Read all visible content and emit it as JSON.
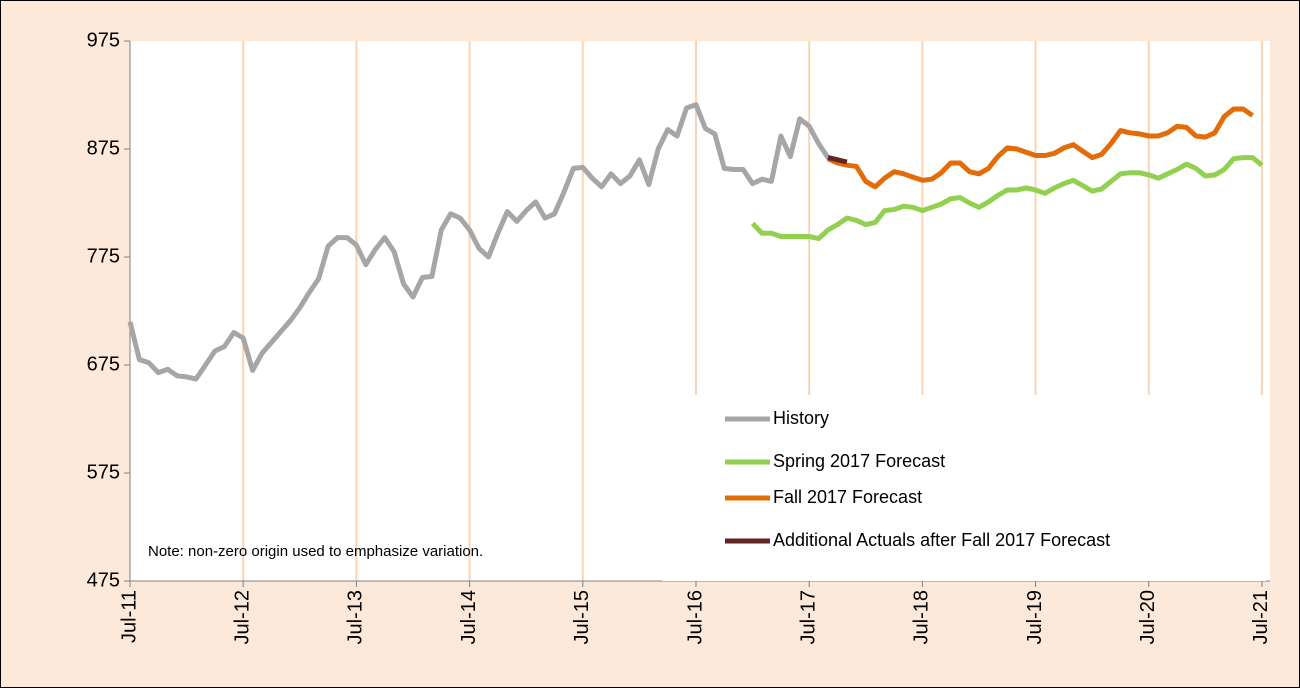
{
  "chart_data": {
    "type": "line",
    "annotation": "Note: non-zero origin used to emphasize variation.",
    "categories": [
      "Jul-11",
      null,
      null,
      null,
      null,
      null,
      null,
      null,
      null,
      null,
      null,
      null,
      "Jul-12",
      null,
      null,
      null,
      null,
      null,
      null,
      null,
      null,
      null,
      null,
      null,
      "Jul-13",
      null,
      null,
      null,
      null,
      null,
      null,
      null,
      null,
      null,
      null,
      null,
      "Jul-14",
      null,
      null,
      null,
      null,
      null,
      null,
      null,
      null,
      null,
      null,
      null,
      "Jul-15",
      null,
      null,
      null,
      null,
      null,
      null,
      null,
      null,
      null,
      null,
      null,
      "Jul-16",
      null,
      null,
      null,
      null,
      null,
      null,
      null,
      null,
      null,
      null,
      null,
      "Jul-17",
      null,
      null,
      null,
      null,
      null,
      null,
      null,
      null,
      null,
      null,
      null,
      "Jul-18",
      null,
      null,
      null,
      null,
      null,
      null,
      null,
      null,
      null,
      null,
      null,
      "Jul-19",
      null,
      null,
      null,
      null,
      null,
      null,
      null,
      null,
      null,
      null,
      null,
      "Jul-20",
      null,
      null,
      null,
      null,
      null,
      null,
      null,
      null,
      null,
      null,
      null,
      "Jul-21"
    ],
    "ylim": [
      475,
      975
    ],
    "yticks": [
      475,
      575,
      675,
      775,
      875,
      975
    ],
    "grid": "x",
    "legend": "lower right",
    "series": [
      {
        "name": "History",
        "color": "#a6a6a6",
        "values": [
          715,
          680,
          677,
          668,
          671,
          665,
          664,
          662,
          675,
          688,
          692,
          705,
          700,
          670,
          686,
          696,
          706,
          716,
          728,
          742,
          755,
          785,
          793,
          793,
          786,
          768,
          782,
          793,
          780,
          750,
          738,
          756,
          757,
          800,
          815,
          811,
          800,
          783,
          775,
          797,
          817,
          808,
          818,
          826,
          811,
          815,
          835,
          857,
          858,
          848,
          840,
          852,
          843,
          850,
          865,
          842,
          875,
          893,
          887,
          913,
          916,
          894,
          889,
          857,
          856,
          856,
          843,
          847,
          845,
          887,
          868,
          903,
          896,
          880,
          867,
          865,
          null,
          null,
          null,
          null,
          null,
          null,
          null,
          null,
          null,
          null,
          null,
          null,
          null,
          null,
          null,
          null,
          null,
          null,
          null,
          null,
          null,
          null,
          null,
          null,
          null,
          null,
          null,
          null,
          null,
          null,
          null,
          null,
          null,
          null,
          null,
          null,
          null,
          null,
          null,
          null,
          null,
          null,
          null,
          null,
          null
        ]
      },
      {
        "name": "Spring 2017 Forecast",
        "color": "#92d050",
        "values": [
          null,
          null,
          null,
          null,
          null,
          null,
          null,
          null,
          null,
          null,
          null,
          null,
          null,
          null,
          null,
          null,
          null,
          null,
          null,
          null,
          null,
          null,
          null,
          null,
          null,
          null,
          null,
          null,
          null,
          null,
          null,
          null,
          null,
          null,
          null,
          null,
          null,
          null,
          null,
          null,
          null,
          null,
          null,
          null,
          null,
          null,
          null,
          null,
          null,
          null,
          null,
          null,
          null,
          null,
          null,
          null,
          null,
          null,
          null,
          null,
          null,
          null,
          null,
          null,
          null,
          null,
          806,
          797,
          797,
          794,
          794,
          794,
          794,
          792,
          800,
          805,
          811,
          809,
          805,
          807,
          818,
          819,
          822,
          821,
          818,
          821,
          824,
          829,
          830,
          825,
          821,
          826,
          832,
          837,
          837,
          839,
          837,
          834,
          839,
          843,
          846,
          841,
          836,
          838,
          845,
          852,
          853,
          853,
          851,
          848,
          852,
          856,
          861,
          857,
          850,
          851,
          856,
          866,
          867,
          867,
          860
        ]
      },
      {
        "name": "Fall 2017 Forecast",
        "color": "#e36c09",
        "values": [
          null,
          null,
          null,
          null,
          null,
          null,
          null,
          null,
          null,
          null,
          null,
          null,
          null,
          null,
          null,
          null,
          null,
          null,
          null,
          null,
          null,
          null,
          null,
          null,
          null,
          null,
          null,
          null,
          null,
          null,
          null,
          null,
          null,
          null,
          null,
          null,
          null,
          null,
          null,
          null,
          null,
          null,
          null,
          null,
          null,
          null,
          null,
          null,
          null,
          null,
          null,
          null,
          null,
          null,
          null,
          null,
          null,
          null,
          null,
          null,
          null,
          null,
          null,
          null,
          null,
          null,
          null,
          null,
          null,
          null,
          null,
          null,
          null,
          null,
          866,
          862,
          860,
          859,
          845,
          840,
          848,
          854,
          852,
          849,
          846,
          847,
          853,
          862,
          862,
          854,
          852,
          857,
          868,
          876,
          875,
          872,
          869,
          869,
          871,
          876,
          879,
          873,
          867,
          870,
          880,
          892,
          890,
          889,
          887,
          887,
          890,
          896,
          895,
          887,
          886,
          890,
          905,
          912,
          912,
          906,
          null
        ]
      },
      {
        "name": "Additional Actuals after Fall 2017 Forecast",
        "color": "#632523",
        "values": [
          null,
          null,
          null,
          null,
          null,
          null,
          null,
          null,
          null,
          null,
          null,
          null,
          null,
          null,
          null,
          null,
          null,
          null,
          null,
          null,
          null,
          null,
          null,
          null,
          null,
          null,
          null,
          null,
          null,
          null,
          null,
          null,
          null,
          null,
          null,
          null,
          null,
          null,
          null,
          null,
          null,
          null,
          null,
          null,
          null,
          null,
          null,
          null,
          null,
          null,
          null,
          null,
          null,
          null,
          null,
          null,
          null,
          null,
          null,
          null,
          null,
          null,
          null,
          null,
          null,
          null,
          null,
          null,
          null,
          null,
          null,
          null,
          null,
          null,
          867,
          865,
          863,
          null,
          null,
          null,
          null,
          null,
          null,
          null,
          null,
          null,
          null,
          null,
          null,
          null,
          null,
          null,
          null,
          null,
          null,
          null,
          null,
          null,
          null,
          null,
          null,
          null,
          null,
          null,
          null,
          null,
          null,
          null,
          null,
          null,
          null,
          null,
          null,
          null,
          null,
          null,
          null,
          null,
          null,
          null,
          null
        ]
      }
    ]
  }
}
